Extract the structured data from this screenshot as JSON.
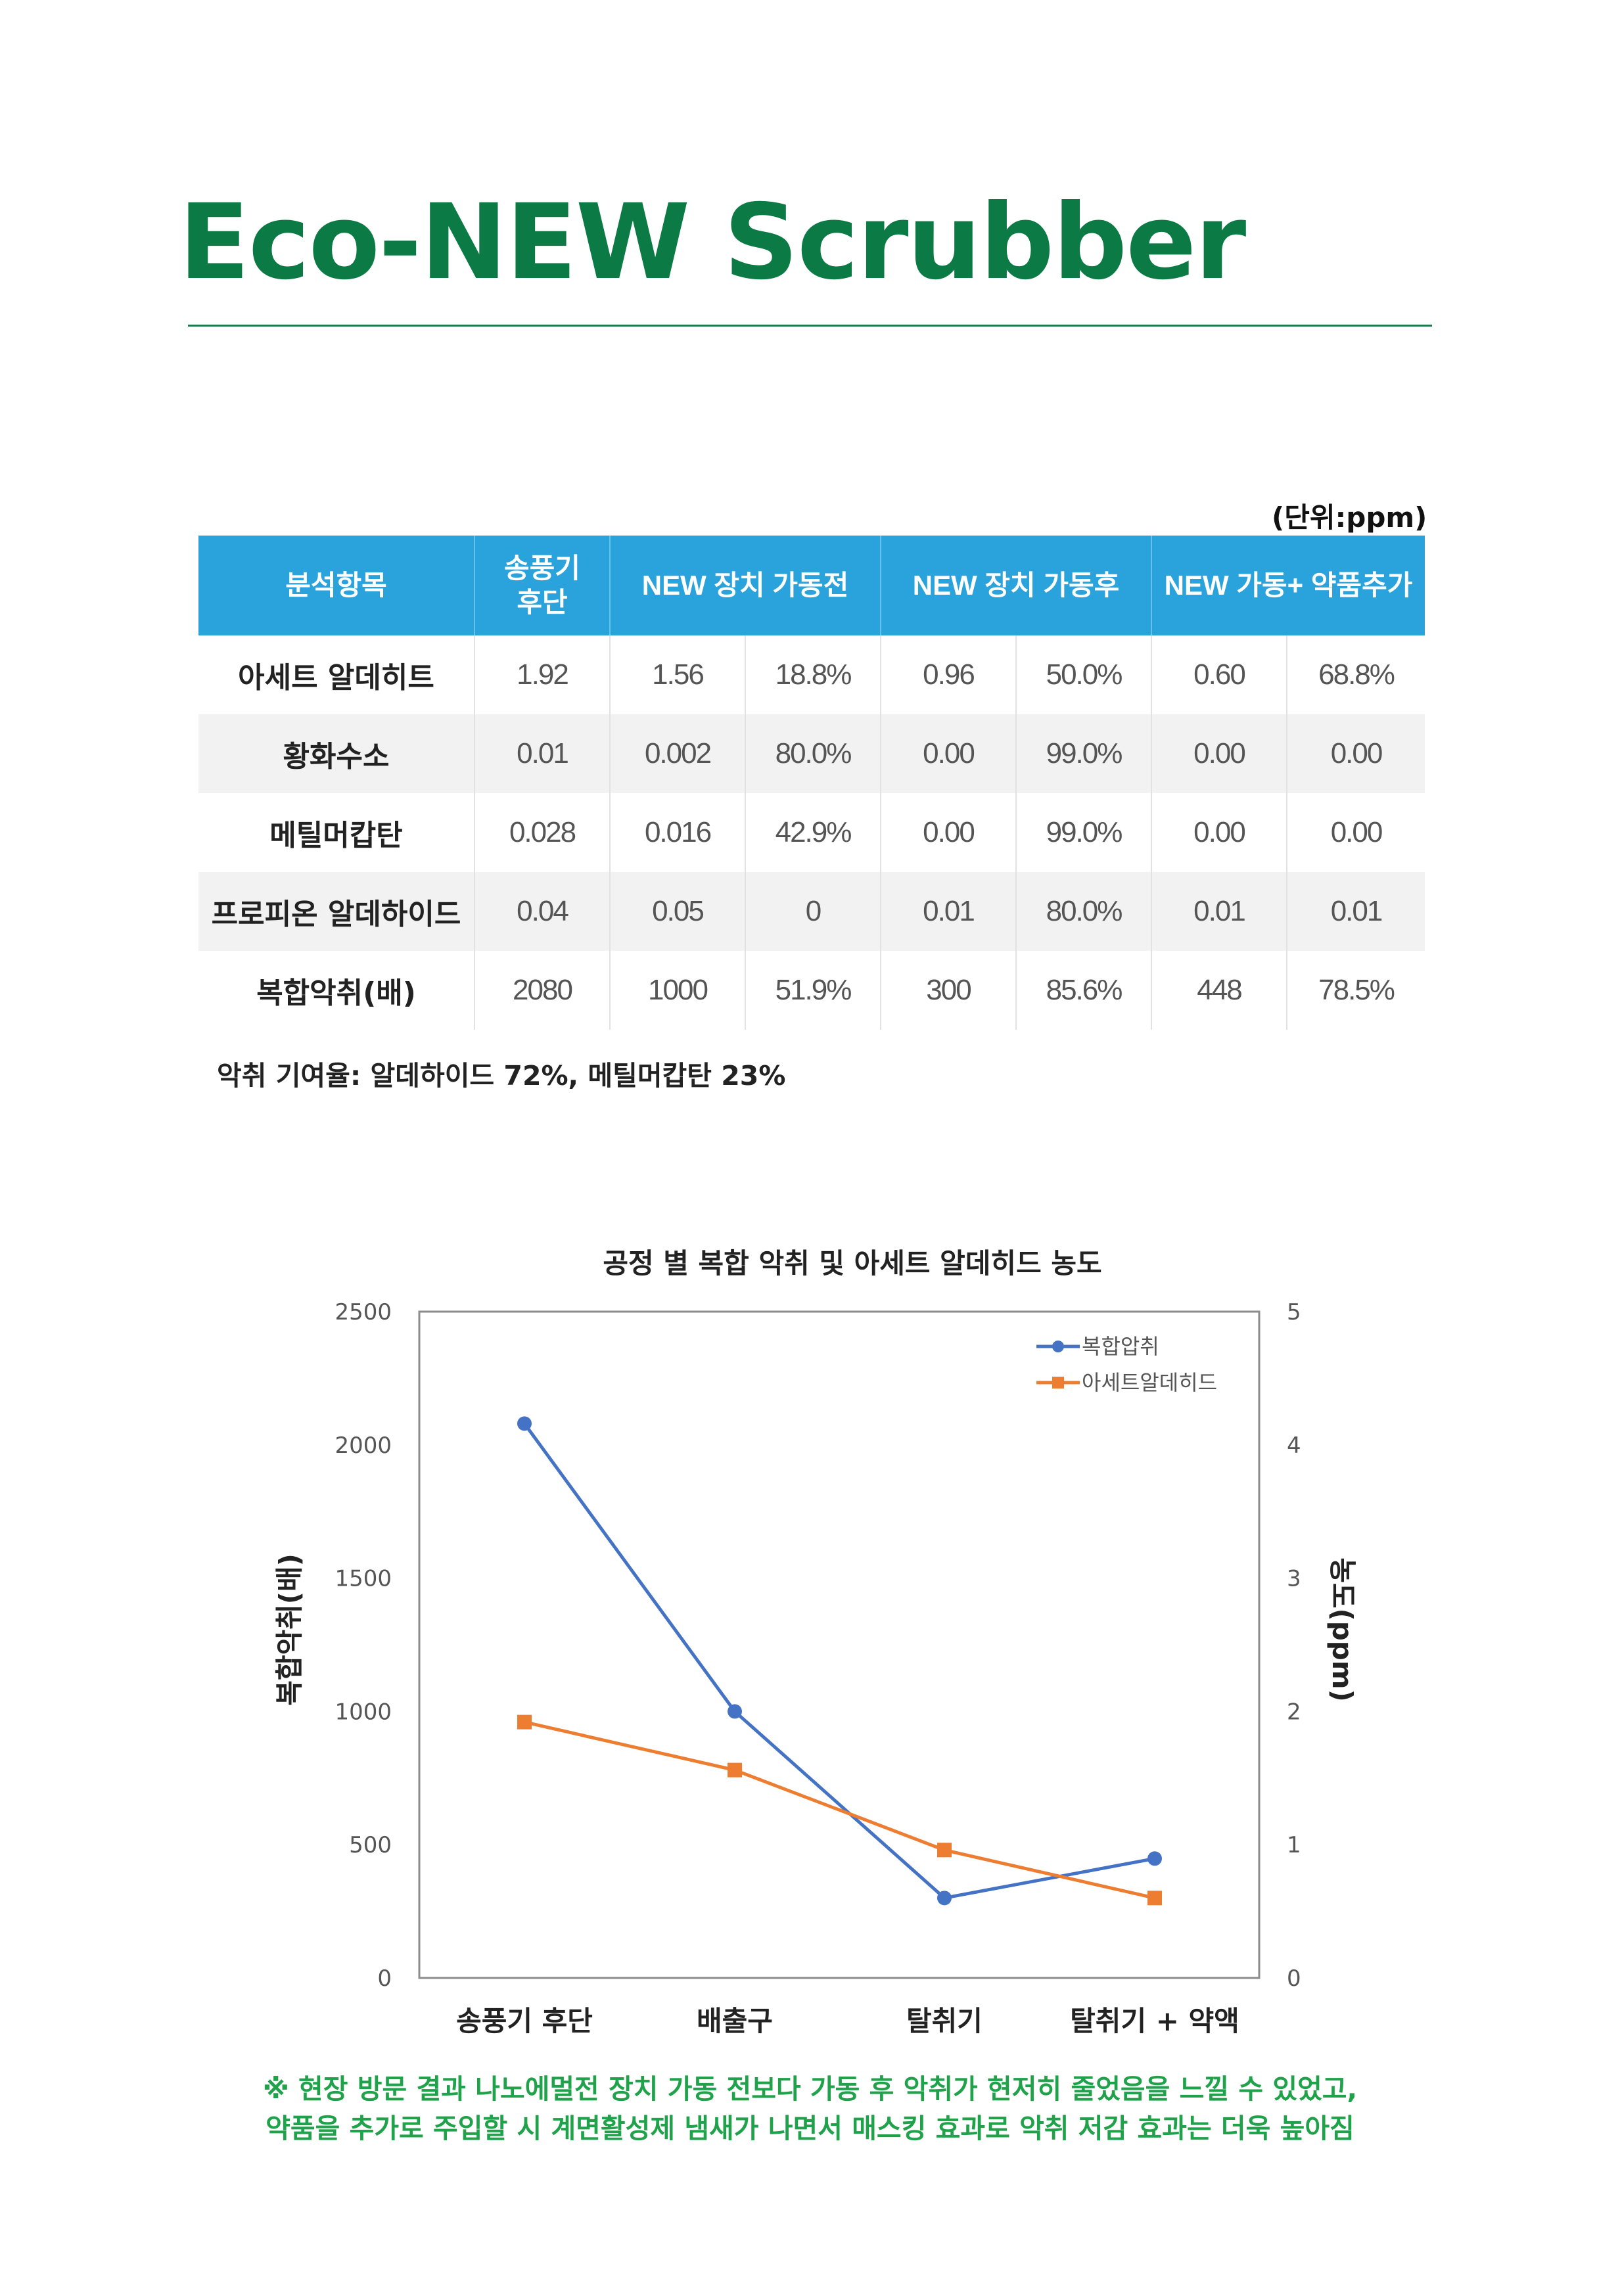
{
  "title": "Eco-NEW Scrubber",
  "table": {
    "unit": "(단위:ppm)",
    "headers": [
      "분석항목",
      "송풍기\n후단",
      "NEW 장치 가동전",
      "NEW 장치 가동후",
      "NEW 가동+ 약품추가"
    ],
    "rows": [
      [
        "아세트 알데히트",
        "1.92",
        "1.56",
        "18.8%",
        "0.96",
        "50.0%",
        "0.60",
        "68.8%"
      ],
      [
        "황화수소",
        "0.01",
        "0.002",
        "80.0%",
        "0.00",
        "99.0%",
        "0.00",
        "0.00"
      ],
      [
        "메틸머캅탄",
        "0.028",
        "0.016",
        "42.9%",
        "0.00",
        "99.0%",
        "0.00",
        "0.00"
      ],
      [
        "프로피온 알데하이드",
        "0.04",
        "0.05",
        "0",
        "0.01",
        "80.0%",
        "0.01",
        "0.01"
      ],
      [
        "복합악취(배)",
        "2080",
        "1000",
        "51.9%",
        "300",
        "85.6%",
        "448",
        "78.5%"
      ]
    ]
  },
  "note": "악취 기여율: 알데하이드 72%, 메틸머캅탄 23%",
  "chart_data": {
    "type": "line",
    "title": "공정 별 복합 악취 및 아세트 알데히드 농도",
    "categories": [
      "송풍기 후단",
      "배출구",
      "탈취기",
      "탈취기 + 약액"
    ],
    "ylabel": "복합악취(배)",
    "y2label": "농도(ppm)",
    "ylim": [
      0,
      2500
    ],
    "y2lim": [
      0,
      5
    ],
    "yticks": [
      0,
      500,
      1000,
      1500,
      2000,
      2500
    ],
    "y2ticks": [
      0,
      1,
      2,
      3,
      4,
      5
    ],
    "legend_position": "top-right",
    "grid": false,
    "series": [
      {
        "name": "복합압취",
        "axis": "left",
        "marker": "circle",
        "color": "#4472c4",
        "values": [
          2080,
          1000,
          300,
          448
        ]
      },
      {
        "name": "아세트알데히드",
        "axis": "right",
        "marker": "square",
        "color": "#ed7d31",
        "values": [
          1.92,
          1.56,
          0.96,
          0.6
        ]
      }
    ]
  },
  "footer": {
    "line1": "※ 현장 방문 결과 나노에멀전 장치 가동 전보다 가동 후 악취가 현저히 줄었음을 느낄 수 있었고,",
    "line2": "약품을 추가로 주입할 시 계면활성제 냄새가 나면서 매스킹 효과로 악취 저감 효과는 더욱 높아짐"
  }
}
